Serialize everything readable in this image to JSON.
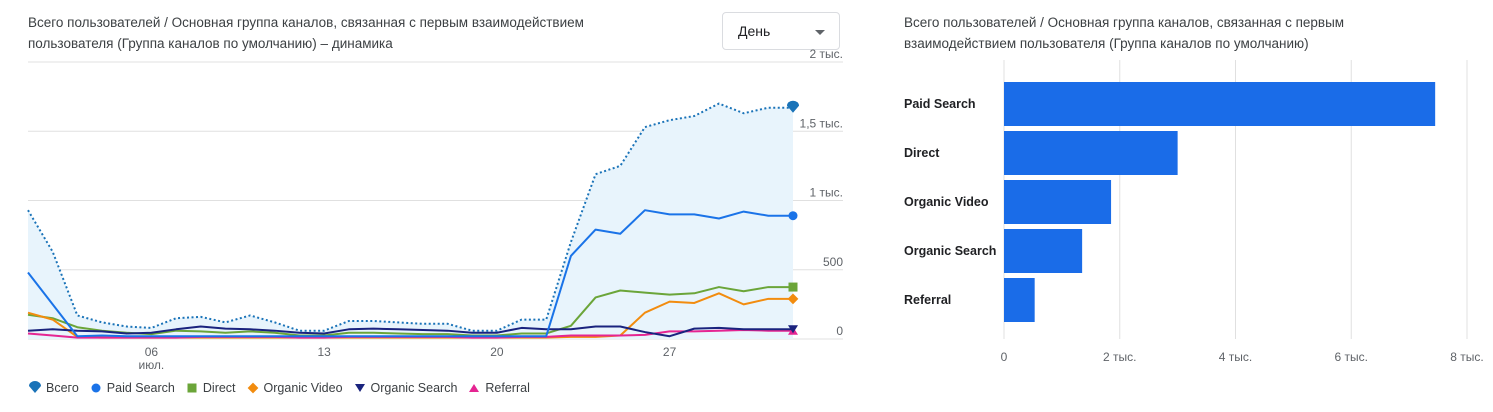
{
  "left_chart": {
    "title": "Всего пользователей / Основная группа каналов, связанная с первым взаимодействием пользователя (Группа каналов по умолчанию) – динамика",
    "dropdown_value": "День"
  },
  "right_chart": {
    "title": "Всего пользователей / Основная группа каналов, связанная с первым взаимодействием пользователя (Группа каналов по умолчанию)"
  },
  "colors": {
    "total": "#1a73b8",
    "paid_search": "#1a73e8",
    "direct": "#6ba539",
    "organic_video": "#f28c0f",
    "organic_search": "#1a237e",
    "referral": "#e52592",
    "total_fill": "#e8f4fc",
    "bar": "#1a6ce8"
  },
  "chart_data": [
    {
      "type": "line",
      "x": [
        "1",
        "2",
        "3",
        "4",
        "5",
        "6",
        "7",
        "8",
        "9",
        "10",
        "11",
        "12",
        "13",
        "14",
        "15",
        "16",
        "17",
        "18",
        "19",
        "20",
        "21",
        "22",
        "23",
        "24",
        "25",
        "26",
        "27",
        "28",
        "29",
        "30",
        "31",
        "1"
      ],
      "x_tick_labels": [
        {
          "index": 5,
          "label": "06",
          "sublabel": "июл."
        },
        {
          "index": 12,
          "label": "13"
        },
        {
          "index": 19,
          "label": "20"
        },
        {
          "index": 26,
          "label": "27"
        }
      ],
      "y_ticks": [
        {
          "value": 0,
          "label": "0"
        },
        {
          "value": 500,
          "label": "500"
        },
        {
          "value": 1000,
          "label": "1 тыс."
        },
        {
          "value": 1500,
          "label": "1,5 тыс."
        },
        {
          "value": 2000,
          "label": "2 тыс."
        }
      ],
      "ylim": [
        0,
        2000
      ],
      "grid": true,
      "legend_position": "bottom",
      "series": [
        {
          "name": "Всего",
          "key": "total",
          "style": "dotted-area",
          "values": [
            930,
            630,
            170,
            120,
            90,
            80,
            150,
            160,
            120,
            170,
            120,
            60,
            60,
            130,
            130,
            120,
            110,
            110,
            60,
            60,
            140,
            140,
            700,
            1190,
            1250,
            1530,
            1580,
            1610,
            1700,
            1630,
            1670,
            1670
          ]
        },
        {
          "name": "Paid Search",
          "key": "paid_search",
          "values": [
            480,
            250,
            20,
            25,
            20,
            20,
            20,
            20,
            20,
            20,
            20,
            20,
            20,
            20,
            20,
            20,
            20,
            20,
            20,
            20,
            20,
            20,
            600,
            790,
            760,
            930,
            900,
            900,
            870,
            920,
            890,
            890
          ]
        },
        {
          "name": "Direct",
          "key": "direct",
          "values": [
            175,
            150,
            85,
            60,
            45,
            35,
            60,
            55,
            45,
            55,
            45,
            25,
            25,
            45,
            45,
            40,
            35,
            35,
            25,
            25,
            40,
            40,
            95,
            300,
            350,
            335,
            320,
            330,
            375,
            345,
            375,
            375
          ]
        },
        {
          "name": "Organic Video",
          "key": "organic_video",
          "values": [
            190,
            140,
            15,
            10,
            10,
            10,
            10,
            10,
            10,
            10,
            10,
            10,
            10,
            10,
            10,
            10,
            10,
            10,
            10,
            10,
            10,
            10,
            15,
            15,
            25,
            190,
            270,
            260,
            330,
            250,
            290,
            290
          ]
        },
        {
          "name": "Organic Search",
          "key": "organic_search",
          "values": [
            60,
            70,
            60,
            55,
            40,
            45,
            70,
            90,
            75,
            70,
            60,
            45,
            40,
            70,
            75,
            70,
            65,
            60,
            45,
            45,
            80,
            70,
            70,
            90,
            90,
            50,
            20,
            75,
            80,
            70,
            70,
            70
          ]
        },
        {
          "name": "Referral",
          "key": "referral",
          "values": [
            40,
            25,
            10,
            10,
            10,
            10,
            10,
            15,
            15,
            15,
            15,
            10,
            10,
            15,
            15,
            15,
            15,
            15,
            10,
            10,
            15,
            15,
            25,
            25,
            25,
            30,
            55,
            55,
            60,
            65,
            60,
            60
          ]
        }
      ]
    },
    {
      "type": "bar",
      "orientation": "horizontal",
      "categories": [
        "Paid Search",
        "Direct",
        "Organic Video",
        "Organic Search",
        "Referral"
      ],
      "values": [
        7450,
        3000,
        1850,
        1350,
        530
      ],
      "xlim": [
        0,
        8000
      ],
      "x_ticks": [
        {
          "value": 0,
          "label": "0"
        },
        {
          "value": 2000,
          "label": "2 тыс."
        },
        {
          "value": 4000,
          "label": "4 тыс."
        },
        {
          "value": 6000,
          "label": "6 тыс."
        },
        {
          "value": 8000,
          "label": "8 тыс."
        }
      ],
      "grid": true
    }
  ]
}
